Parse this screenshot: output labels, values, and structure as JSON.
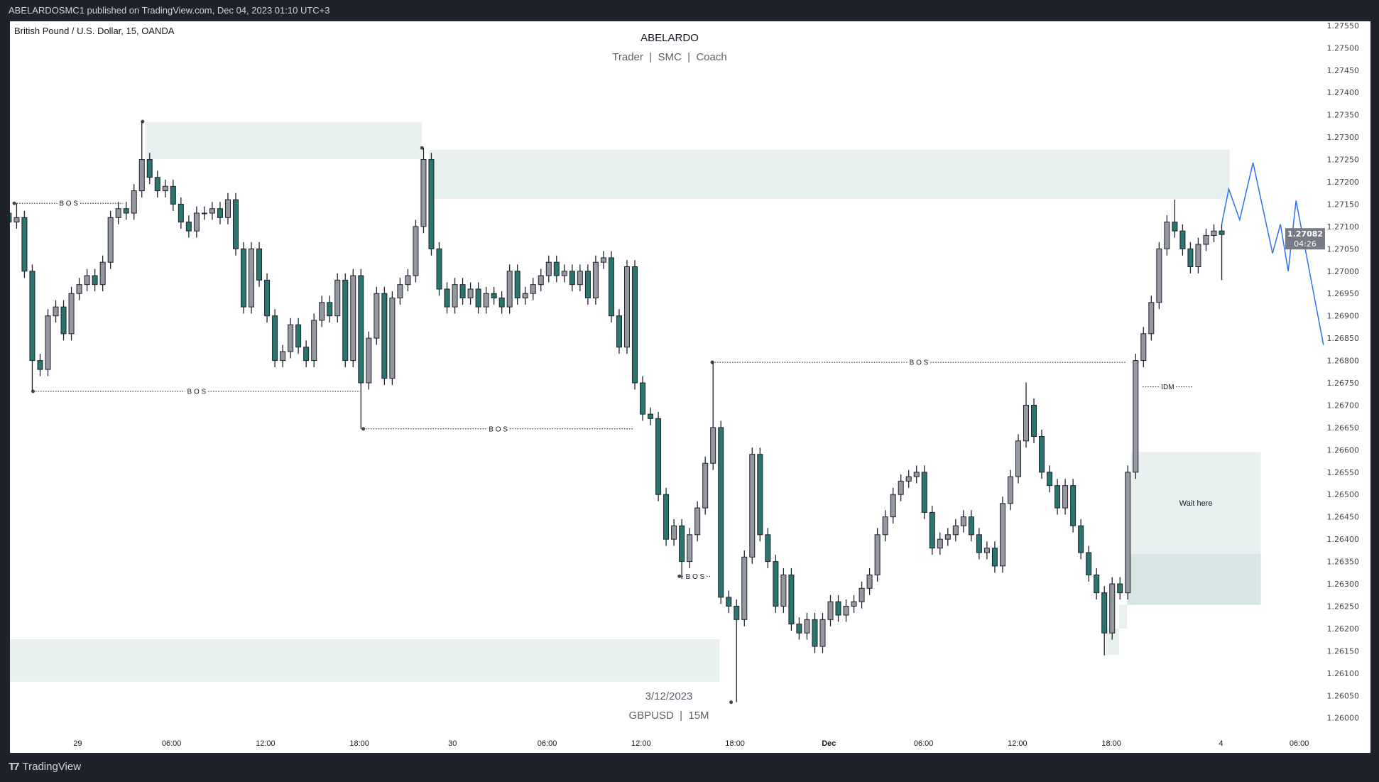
{
  "topbar": {
    "publish_text": "ABELARDOSMC1 published on TradingView.com, Dec 04, 2023 01:10 UTC+3"
  },
  "footer": {
    "brand": "TradingView",
    "logo_icon": "tradingview-logo-icon"
  },
  "chart_data": {
    "type": "candlestick",
    "symbol_title": "British Pound / U.S. Dollar, 15, OANDA",
    "watermark_title": "ABELARDO",
    "watermark_subtitle": "Trader  |  SMC  |  Coach",
    "bottom_date": "3/12/2023",
    "bottom_symbol": "GBPUSD  |  15M",
    "colors": {
      "up": "#9598a1",
      "down": "#2a7570",
      "wick": "#1e222d",
      "zone": "#e8f1ef",
      "zone_dark": "#d6e6e4",
      "projection": "#2f6fef",
      "price_tag": "#787b86"
    },
    "ylim": [
      1.2595,
      1.2757
    ],
    "y_ticks": [
      "1.27550",
      "1.27500",
      "1.27450",
      "1.27400",
      "1.27350",
      "1.27300",
      "1.27250",
      "1.27200",
      "1.27150",
      "1.27100",
      "1.27050",
      "1.27000",
      "1.26950",
      "1.26900",
      "1.26850",
      "1.26800",
      "1.26750",
      "1.26700",
      "1.26650",
      "1.26600",
      "1.26550",
      "1.26500",
      "1.26450",
      "1.26400",
      "1.26350",
      "1.26300",
      "1.26250",
      "1.26200",
      "1.26150",
      "1.26100",
      "1.26050",
      "1.26000"
    ],
    "x_ticks": [
      {
        "label": "29",
        "bar": 8.8,
        "bold": false
      },
      {
        "label": "06:00",
        "bar": 20.8,
        "bold": false
      },
      {
        "label": "12:00",
        "bar": 32.8,
        "bold": false
      },
      {
        "label": "18:00",
        "bar": 44.8,
        "bold": false
      },
      {
        "label": "30",
        "bar": 56.7,
        "bold": false
      },
      {
        "label": "06:00",
        "bar": 68.8,
        "bold": false
      },
      {
        "label": "12:00",
        "bar": 80.8,
        "bold": false
      },
      {
        "label": "18:00",
        "bar": 92.8,
        "bold": false
      },
      {
        "label": "Dec",
        "bar": 104.8,
        "bold": true
      },
      {
        "label": "06:00",
        "bar": 116.9,
        "bold": false
      },
      {
        "label": "12:00",
        "bar": 128.9,
        "bold": false
      },
      {
        "label": "18:00",
        "bar": 140.9,
        "bold": false
      },
      {
        "label": "4",
        "bar": 154.9,
        "bold": false
      },
      {
        "label": "06:00",
        "bar": 164.9,
        "bold": false
      }
    ],
    "first_open": 1.2713,
    "close": [
      1.2711,
      1.2712,
      1.27,
      1.268,
      1.2678,
      1.269,
      1.2692,
      1.2686,
      1.2695,
      1.2697,
      1.2699,
      1.2697,
      1.2702,
      1.2712,
      1.2714,
      1.2713,
      1.2718,
      1.2725,
      1.2721,
      1.2718,
      1.2719,
      1.2715,
      1.2711,
      1.2709,
      1.2713,
      1.2713,
      1.2714,
      1.2712,
      1.2716,
      1.2705,
      1.2692,
      1.2705,
      1.2698,
      1.269,
      1.268,
      1.2682,
      1.2688,
      1.2683,
      1.268,
      1.2689,
      1.2693,
      1.269,
      1.2698,
      1.268,
      1.2699,
      1.2675,
      1.2685,
      1.2695,
      1.2676,
      1.2694,
      1.2697,
      1.2699,
      1.271,
      1.2725,
      1.2705,
      1.2696,
      1.2692,
      1.2697,
      1.2694,
      1.2696,
      1.2692,
      1.2695,
      1.2694,
      1.2692,
      1.27,
      1.2694,
      1.2695,
      1.2697,
      1.2699,
      1.2702,
      1.2699,
      1.27,
      1.2697,
      1.27,
      1.2694,
      1.2702,
      1.2703,
      1.269,
      1.2683,
      1.2701,
      1.2675,
      1.2668,
      1.2667,
      1.265,
      1.264,
      1.2643,
      1.2635,
      1.2641,
      1.2647,
      1.2657,
      1.2665,
      1.2627,
      1.2625,
      1.2622,
      1.2636,
      1.2659,
      1.2641,
      1.2635,
      1.2625,
      1.2632,
      1.2621,
      1.2619,
      1.2622,
      1.2616,
      1.2622,
      1.2626,
      1.2623,
      1.2625,
      1.2626,
      1.2629,
      1.2632,
      1.2641,
      1.2645,
      1.265,
      1.2653,
      1.2654,
      1.2655,
      1.2646,
      1.2638,
      1.264,
      1.2641,
      1.2643,
      1.2645,
      1.2641,
      1.2637,
      1.2638,
      1.2634,
      1.2648,
      1.2654,
      1.2662,
      1.267,
      1.2663,
      1.2655,
      1.2652,
      1.2647,
      1.2652,
      1.2643,
      1.2637,
      1.2632,
      1.2628,
      1.2619,
      1.263,
      1.2628,
      1.2655,
      1.268,
      1.2686,
      1.2693,
      1.2705,
      1.2711,
      1.2709,
      1.2705,
      1.2701,
      1.2706,
      1.2708,
      1.2709,
      1.27082
    ],
    "high_overrides": {
      "1": 1.27152,
      "17": 1.27335,
      "53": 1.27276,
      "90": 1.26797,
      "130": 1.26751,
      "149": 1.2716
    },
    "low_overrides": {
      "3": 1.26731,
      "45": 1.26647,
      "86": 1.26311,
      "93": 1.26035,
      "140": 1.2614,
      "155": 1.2698
    },
    "last_price": {
      "price": 1.27082,
      "label": "1.27082",
      "countdown": "04:26"
    },
    "zones": [
      {
        "from": 17.4,
        "to": 52.8,
        "top": 1.27334,
        "bottom": 1.27251,
        "tone": "zone",
        "label": ""
      },
      {
        "from": 53.7,
        "to": 156,
        "top": 1.27272,
        "bottom": 1.27162,
        "tone": "zone",
        "label": ""
      },
      {
        "from": 0,
        "to": 90.8,
        "top": 1.26176,
        "bottom": 1.26081,
        "tone": "zone",
        "label": ""
      },
      {
        "from": 143.4,
        "to": 160,
        "top": 1.26595,
        "bottom": 1.26367,
        "tone": "zone",
        "label": "Wait here"
      },
      {
        "from": 142.9,
        "to": 160,
        "top": 1.26367,
        "bottom": 1.26253,
        "tone": "zone_dark",
        "label": ""
      },
      {
        "from": 141.9,
        "to": 142.9,
        "top": 1.26253,
        "bottom": 1.262,
        "tone": "zone",
        "label": ""
      },
      {
        "from": 140.2,
        "to": 141.9,
        "top": 1.262,
        "bottom": 1.26141,
        "tone": "zone",
        "label": ""
      }
    ],
    "levels": [
      {
        "label": "B O S",
        "from": 0.7,
        "to": 14.6,
        "price": 1.27152,
        "dot": true
      },
      {
        "label": "B O S",
        "from": 3.1,
        "to": 44.9,
        "price": 1.26731,
        "dot": true
      },
      {
        "label": "B O S",
        "from": 45.3,
        "to": 79.8,
        "price": 1.26647,
        "dot": true
      },
      {
        "label": "B O S",
        "from": 89.9,
        "to": 142.7,
        "price": 1.26796,
        "dot": true
      },
      {
        "label": "B O S",
        "from": 85.7,
        "to": 89.7,
        "price": 1.26317,
        "dot": true
      },
      {
        "label": "IDM",
        "from": 144.9,
        "to": 151.3,
        "price": 1.26741,
        "dot": false
      }
    ],
    "swing_dots": [
      {
        "bar": 17.1,
        "price": 1.27335
      },
      {
        "bar": 52.8,
        "price": 1.27276
      },
      {
        "bar": 92.3,
        "price": 1.26035
      },
      {
        "bar": 89.9,
        "price": 1.26796
      }
    ],
    "projection": [
      {
        "bar": 155,
        "price": 1.27105
      },
      {
        "bar": 155.9,
        "price": 1.27184
      },
      {
        "bar": 157.3,
        "price": 1.27115
      },
      {
        "bar": 159,
        "price": 1.27243
      },
      {
        "bar": 161.5,
        "price": 1.2704
      },
      {
        "bar": 162.5,
        "price": 1.27105
      },
      {
        "bar": 163.5,
        "price": 1.27
      },
      {
        "bar": 164.5,
        "price": 1.27158
      },
      {
        "bar": 168,
        "price": 1.26835
      }
    ]
  }
}
